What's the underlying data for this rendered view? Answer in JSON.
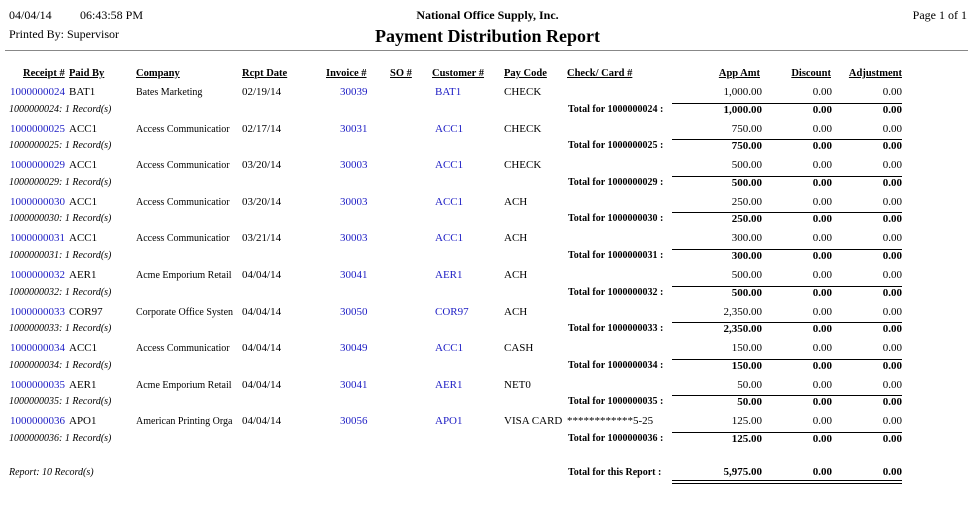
{
  "header": {
    "date": "04/04/14",
    "time": "06:43:58 PM",
    "printed_by": "Printed By: Supervisor",
    "company": "National Office Supply, Inc.",
    "title": "Payment Distribution Report",
    "page": "Page 1 of 1"
  },
  "columns": {
    "receipt": "Receipt #",
    "paid_by": "Paid By",
    "company": "Company",
    "rcpt_date": "Rcpt Date",
    "invoice": "Invoice #",
    "so": "SO #",
    "customer": "Customer #",
    "pay_code": "Pay Code",
    "check_card": "Check/ Card #",
    "app_amt": "App Amt",
    "discount": "Discount",
    "adjustment": "Adjustment"
  },
  "records": [
    {
      "receipt": "1000000024",
      "paid_by": "BAT1",
      "company": "Bates Marketing",
      "rcpt_date": "02/19/14",
      "invoice": "30039",
      "customer": "BAT1",
      "pay_code": "CHECK",
      "app_amt": "1,000.00",
      "discount": "0.00",
      "adjustment": "0.00",
      "records_label": "1000000024: 1 Record(s)",
      "total_label": "Total for 1000000024 :",
      "total_app_amt": "1,000.00",
      "total_discount": "0.00",
      "total_adjustment": "0.00"
    },
    {
      "receipt": "1000000025",
      "paid_by": "ACC1",
      "company": "Access Communicatior",
      "rcpt_date": "02/17/14",
      "invoice": "30031",
      "customer": "ACC1",
      "pay_code": "CHECK",
      "app_amt": "750.00",
      "discount": "0.00",
      "adjustment": "0.00",
      "records_label": "1000000025: 1 Record(s)",
      "total_label": "Total for 1000000025 :",
      "total_app_amt": "750.00",
      "total_discount": "0.00",
      "total_adjustment": "0.00"
    },
    {
      "receipt": "1000000029",
      "paid_by": "ACC1",
      "company": "Access Communicatior",
      "rcpt_date": "03/20/14",
      "invoice": "30003",
      "customer": "ACC1",
      "pay_code": "CHECK",
      "app_amt": "500.00",
      "discount": "0.00",
      "adjustment": "0.00",
      "records_label": "1000000029: 1 Record(s)",
      "total_label": "Total for 1000000029 :",
      "total_app_amt": "500.00",
      "total_discount": "0.00",
      "total_adjustment": "0.00"
    },
    {
      "receipt": "1000000030",
      "paid_by": "ACC1",
      "company": "Access Communicatior",
      "rcpt_date": "03/20/14",
      "invoice": "30003",
      "customer": "ACC1",
      "pay_code": "ACH",
      "app_amt": "250.00",
      "discount": "0.00",
      "adjustment": "0.00",
      "records_label": "1000000030: 1 Record(s)",
      "total_label": "Total for 1000000030 :",
      "total_app_amt": "250.00",
      "total_discount": "0.00",
      "total_adjustment": "0.00"
    },
    {
      "receipt": "1000000031",
      "paid_by": "ACC1",
      "company": "Access Communicatior",
      "rcpt_date": "03/21/14",
      "invoice": "30003",
      "customer": "ACC1",
      "pay_code": "ACH",
      "app_amt": "300.00",
      "discount": "0.00",
      "adjustment": "0.00",
      "records_label": "1000000031: 1 Record(s)",
      "total_label": "Total for 1000000031 :",
      "total_app_amt": "300.00",
      "total_discount": "0.00",
      "total_adjustment": "0.00"
    },
    {
      "receipt": "1000000032",
      "paid_by": "AER1",
      "company": "Acme Emporium Retail",
      "rcpt_date": "04/04/14",
      "invoice": "30041",
      "customer": "AER1",
      "pay_code": "ACH",
      "app_amt": "500.00",
      "discount": "0.00",
      "adjustment": "0.00",
      "records_label": "1000000032: 1 Record(s)",
      "total_label": "Total for 1000000032 :",
      "total_app_amt": "500.00",
      "total_discount": "0.00",
      "total_adjustment": "0.00"
    },
    {
      "receipt": "1000000033",
      "paid_by": "COR97",
      "company": "Corporate Office Systen",
      "rcpt_date": "04/04/14",
      "invoice": "30050",
      "customer": "COR97",
      "pay_code": "ACH",
      "app_amt": "2,350.00",
      "discount": "0.00",
      "adjustment": "0.00",
      "records_label": "1000000033: 1 Record(s)",
      "total_label": "Total for 1000000033 :",
      "total_app_amt": "2,350.00",
      "total_discount": "0.00",
      "total_adjustment": "0.00"
    },
    {
      "receipt": "1000000034",
      "paid_by": "ACC1",
      "company": "Access Communicatior",
      "rcpt_date": "04/04/14",
      "invoice": "30049",
      "customer": "ACC1",
      "pay_code": "CASH",
      "app_amt": "150.00",
      "discount": "0.00",
      "adjustment": "0.00",
      "records_label": "1000000034: 1 Record(s)",
      "total_label": "Total for 1000000034 :",
      "total_app_amt": "150.00",
      "total_discount": "0.00",
      "total_adjustment": "0.00"
    },
    {
      "receipt": "1000000035",
      "paid_by": "AER1",
      "company": "Acme Emporium Retail",
      "rcpt_date": "04/04/14",
      "invoice": "30041",
      "customer": "AER1",
      "pay_code": "NET0",
      "app_amt": "50.00",
      "discount": "0.00",
      "adjustment": "0.00",
      "records_label": "1000000035: 1 Record(s)",
      "total_label": "Total for 1000000035 :",
      "total_app_amt": "50.00",
      "total_discount": "0.00",
      "total_adjustment": "0.00"
    },
    {
      "receipt": "1000000036",
      "paid_by": "APO1",
      "company": "American Printing Orga",
      "rcpt_date": "04/04/14",
      "invoice": "30056",
      "customer": "APO1",
      "pay_code": "VISA CARD",
      "check_card": "************5-25",
      "app_amt": "125.00",
      "discount": "0.00",
      "adjustment": "0.00",
      "records_label": "1000000036: 1 Record(s)",
      "total_label": "Total for 1000000036 :",
      "total_app_amt": "125.00",
      "total_discount": "0.00",
      "total_adjustment": "0.00"
    }
  ],
  "footer": {
    "records_label": "Report: 10 Record(s)",
    "total_label": "Total for this Report :",
    "total_app_amt": "5,975.00",
    "total_discount": "0.00",
    "total_adjustment": "0.00"
  }
}
